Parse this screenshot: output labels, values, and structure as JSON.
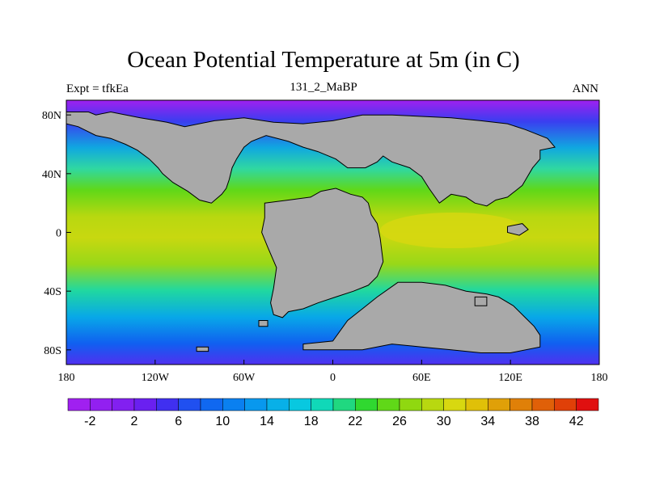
{
  "header": {
    "title": "Ocean Potential Temperature at 5m (in C)",
    "left": "Expt = tfkEa",
    "center": "131_2_MaBP",
    "right": "ANN"
  },
  "map": {
    "projection": "cylindrical-equidistant",
    "lon_range": [
      -180,
      180
    ],
    "lat_range": [
      -90,
      90
    ],
    "x_ticks": [
      {
        "lon": -180,
        "label": "180"
      },
      {
        "lon": -120,
        "label": "120W"
      },
      {
        "lon": -60,
        "label": "60W"
      },
      {
        "lon": 0,
        "label": "0"
      },
      {
        "lon": 60,
        "label": "60E"
      },
      {
        "lon": 120,
        "label": "120E"
      },
      {
        "lon": 180,
        "label": "180"
      }
    ],
    "y_ticks": [
      {
        "lat": 80,
        "label": "80N"
      },
      {
        "lat": 40,
        "label": "40N"
      },
      {
        "lat": 0,
        "label": "0"
      },
      {
        "lat": -40,
        "label": "40S"
      },
      {
        "lat": -80,
        "label": "80S"
      }
    ],
    "land_color": "#a9a9a9",
    "land_masses": [
      {
        "name": "north-america-eurasia-arctic",
        "lonlat": [
          [
            -180,
            82
          ],
          [
            -165,
            82
          ],
          [
            -160,
            80
          ],
          [
            -150,
            82
          ],
          [
            -130,
            78
          ],
          [
            -118,
            76
          ],
          [
            -112,
            75
          ],
          [
            -100,
            72
          ],
          [
            -80,
            76
          ],
          [
            -60,
            78
          ],
          [
            -40,
            75
          ],
          [
            -20,
            74
          ],
          [
            0,
            76
          ],
          [
            20,
            80
          ],
          [
            40,
            80
          ],
          [
            60,
            79
          ],
          [
            80,
            78
          ],
          [
            100,
            76
          ],
          [
            118,
            74
          ],
          [
            130,
            70
          ],
          [
            145,
            64
          ],
          [
            150,
            58
          ],
          [
            140,
            56
          ],
          [
            140,
            50
          ],
          [
            135,
            44
          ],
          [
            128,
            32
          ],
          [
            118,
            24
          ],
          [
            110,
            22
          ],
          [
            104,
            18
          ],
          [
            96,
            20
          ],
          [
            90,
            24
          ],
          [
            80,
            26
          ],
          [
            72,
            20
          ],
          [
            65,
            30
          ],
          [
            60,
            38
          ],
          [
            52,
            44
          ],
          [
            40,
            48
          ],
          [
            34,
            52
          ],
          [
            30,
            48
          ],
          [
            22,
            44
          ],
          [
            16,
            44
          ],
          [
            10,
            44
          ],
          [
            2,
            50
          ],
          [
            -10,
            55
          ],
          [
            -20,
            58
          ],
          [
            -30,
            62
          ],
          [
            -45,
            66
          ],
          [
            -55,
            62
          ],
          [
            -60,
            58
          ],
          [
            -65,
            50
          ],
          [
            -68,
            44
          ],
          [
            -70,
            36
          ],
          [
            -72,
            30
          ],
          [
            -75,
            26
          ],
          [
            -82,
            20
          ],
          [
            -90,
            22
          ],
          [
            -98,
            28
          ],
          [
            -108,
            34
          ],
          [
            -115,
            40
          ],
          [
            -118,
            44
          ],
          [
            -124,
            50
          ],
          [
            -132,
            56
          ],
          [
            -140,
            60
          ],
          [
            -150,
            64
          ],
          [
            -160,
            66
          ],
          [
            -172,
            72
          ],
          [
            -180,
            74
          ]
        ]
      },
      {
        "name": "south-america-africa",
        "lonlat": [
          [
            -46,
            20
          ],
          [
            -30,
            22
          ],
          [
            -15,
            24
          ],
          [
            -8,
            28
          ],
          [
            2,
            30
          ],
          [
            12,
            26
          ],
          [
            20,
            24
          ],
          [
            24,
            20
          ],
          [
            26,
            12
          ],
          [
            30,
            6
          ],
          [
            32,
            -4
          ],
          [
            34,
            -20
          ],
          [
            30,
            -30
          ],
          [
            24,
            -36
          ],
          [
            14,
            -40
          ],
          [
            2,
            -44
          ],
          [
            -10,
            -48
          ],
          [
            -20,
            -52
          ],
          [
            -30,
            -54
          ],
          [
            -34,
            -58
          ],
          [
            -40,
            -56
          ],
          [
            -42,
            -48
          ],
          [
            -40,
            -38
          ],
          [
            -38,
            -24
          ],
          [
            -44,
            -10
          ],
          [
            -48,
            0
          ],
          [
            -46,
            10
          ],
          [
            -46,
            20
          ]
        ]
      },
      {
        "name": "antarctica-australia",
        "lonlat": [
          [
            -20,
            -76
          ],
          [
            0,
            -74
          ],
          [
            10,
            -60
          ],
          [
            20,
            -52
          ],
          [
            30,
            -44
          ],
          [
            44,
            -34
          ],
          [
            60,
            -34
          ],
          [
            76,
            -36
          ],
          [
            90,
            -40
          ],
          [
            104,
            -42
          ],
          [
            112,
            -44
          ],
          [
            122,
            -50
          ],
          [
            130,
            -58
          ],
          [
            136,
            -64
          ],
          [
            140,
            -70
          ],
          [
            140,
            -78
          ],
          [
            120,
            -82
          ],
          [
            100,
            -82
          ],
          [
            80,
            -80
          ],
          [
            60,
            -78
          ],
          [
            40,
            -76
          ],
          [
            20,
            -80
          ],
          [
            0,
            -80
          ],
          [
            -20,
            -80
          ]
        ]
      },
      {
        "name": "pacific-island-1",
        "lonlat": [
          [
            -92,
            -78
          ],
          [
            -84,
            -78
          ],
          [
            -84,
            -81
          ],
          [
            -92,
            -81
          ]
        ]
      },
      {
        "name": "pacific-island-2",
        "lonlat": [
          [
            -50,
            -60
          ],
          [
            -44,
            -60
          ],
          [
            -44,
            -64
          ],
          [
            -50,
            -64
          ]
        ]
      },
      {
        "name": "indian-island",
        "lonlat": [
          [
            96,
            -44
          ],
          [
            104,
            -44
          ],
          [
            104,
            -50
          ],
          [
            96,
            -50
          ]
        ]
      },
      {
        "name": "se-asia-island",
        "lonlat": [
          [
            118,
            4
          ],
          [
            128,
            6
          ],
          [
            132,
            2
          ],
          [
            126,
            -2
          ],
          [
            118,
            0
          ]
        ]
      }
    ]
  },
  "colorbar": {
    "labels": [
      "-2",
      "2",
      "6",
      "10",
      "14",
      "18",
      "22",
      "26",
      "30",
      "34",
      "38",
      "42"
    ],
    "colors": [
      "#a020f0",
      "#9220f0",
      "#8220f0",
      "#6a20f0",
      "#4030f0",
      "#2050f0",
      "#1068f0",
      "#0a80f0",
      "#0898ee",
      "#08b0e8",
      "#08c8e0",
      "#10d8b8",
      "#20d880",
      "#30d830",
      "#60d818",
      "#90d810",
      "#b8d810",
      "#d8d810",
      "#e0c008",
      "#e0a008",
      "#e08008",
      "#e06008",
      "#e04008",
      "#e01010"
    ]
  }
}
